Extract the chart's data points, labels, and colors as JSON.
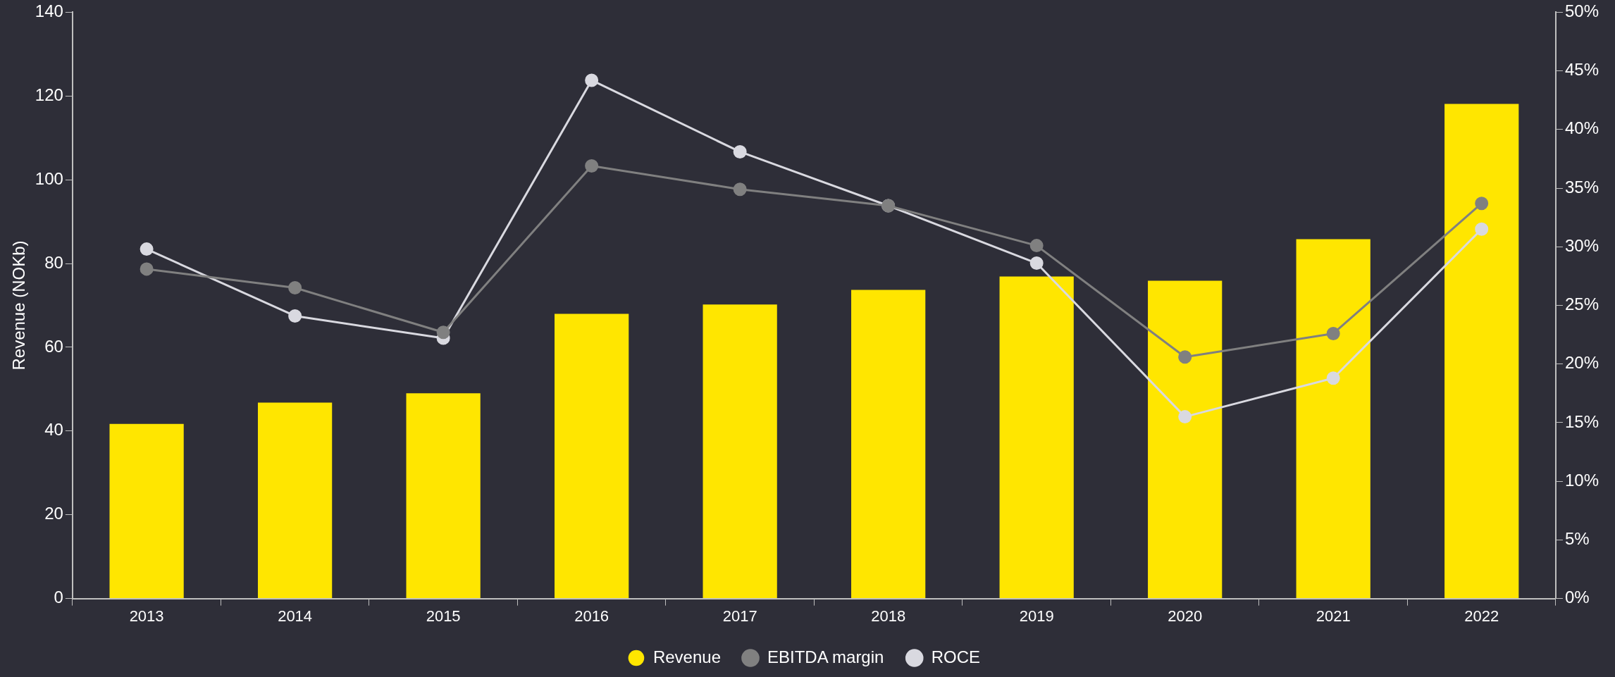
{
  "chart_data": {
    "type": "bar",
    "ylabel": "Revenue (NOKb)",
    "categories": [
      "2013",
      "2014",
      "2015",
      "2016",
      "2017",
      "2018",
      "2019",
      "2020",
      "2021",
      "2022"
    ],
    "series": [
      {
        "name": "Revenue",
        "color": "#ffe600",
        "values": [
          41.7,
          46.8,
          49.0,
          68.0,
          70.2,
          73.7,
          76.9,
          75.9,
          85.8,
          118.1
        ]
      },
      {
        "name": "EBITDA margin",
        "type": "line",
        "axis": "y2",
        "color": "#808080",
        "values": [
          28.1,
          26.5,
          22.7,
          36.9,
          34.9,
          33.5,
          30.1,
          20.6,
          22.6,
          33.7
        ]
      },
      {
        "name": "ROCE",
        "type": "line",
        "axis": "y2",
        "color": "#d9d9e0",
        "values": [
          29.8,
          24.1,
          22.2,
          44.2,
          38.1,
          33.5,
          28.6,
          15.5,
          18.8,
          31.5
        ]
      }
    ],
    "ylim": [
      0,
      140
    ],
    "yticks": [
      0,
      20,
      40,
      60,
      80,
      100,
      120,
      140
    ],
    "y2lim": [
      0,
      50
    ],
    "y2ticks": [
      {
        "value": 0,
        "label": "0%"
      },
      {
        "value": 5,
        "label": "5%"
      },
      {
        "value": 10,
        "label": "10%"
      },
      {
        "value": 15,
        "label": "15%"
      },
      {
        "value": 20,
        "label": "20%"
      },
      {
        "value": 25,
        "label": "25%"
      },
      {
        "value": 30,
        "label": "30%"
      },
      {
        "value": 35,
        "label": "35%"
      },
      {
        "value": 40,
        "label": "40%"
      },
      {
        "value": 45,
        "label": "45%"
      },
      {
        "value": 50,
        "label": "50%"
      }
    ],
    "grid": false,
    "legend": "bottom",
    "marker": "circle",
    "line_style": "solid"
  }
}
